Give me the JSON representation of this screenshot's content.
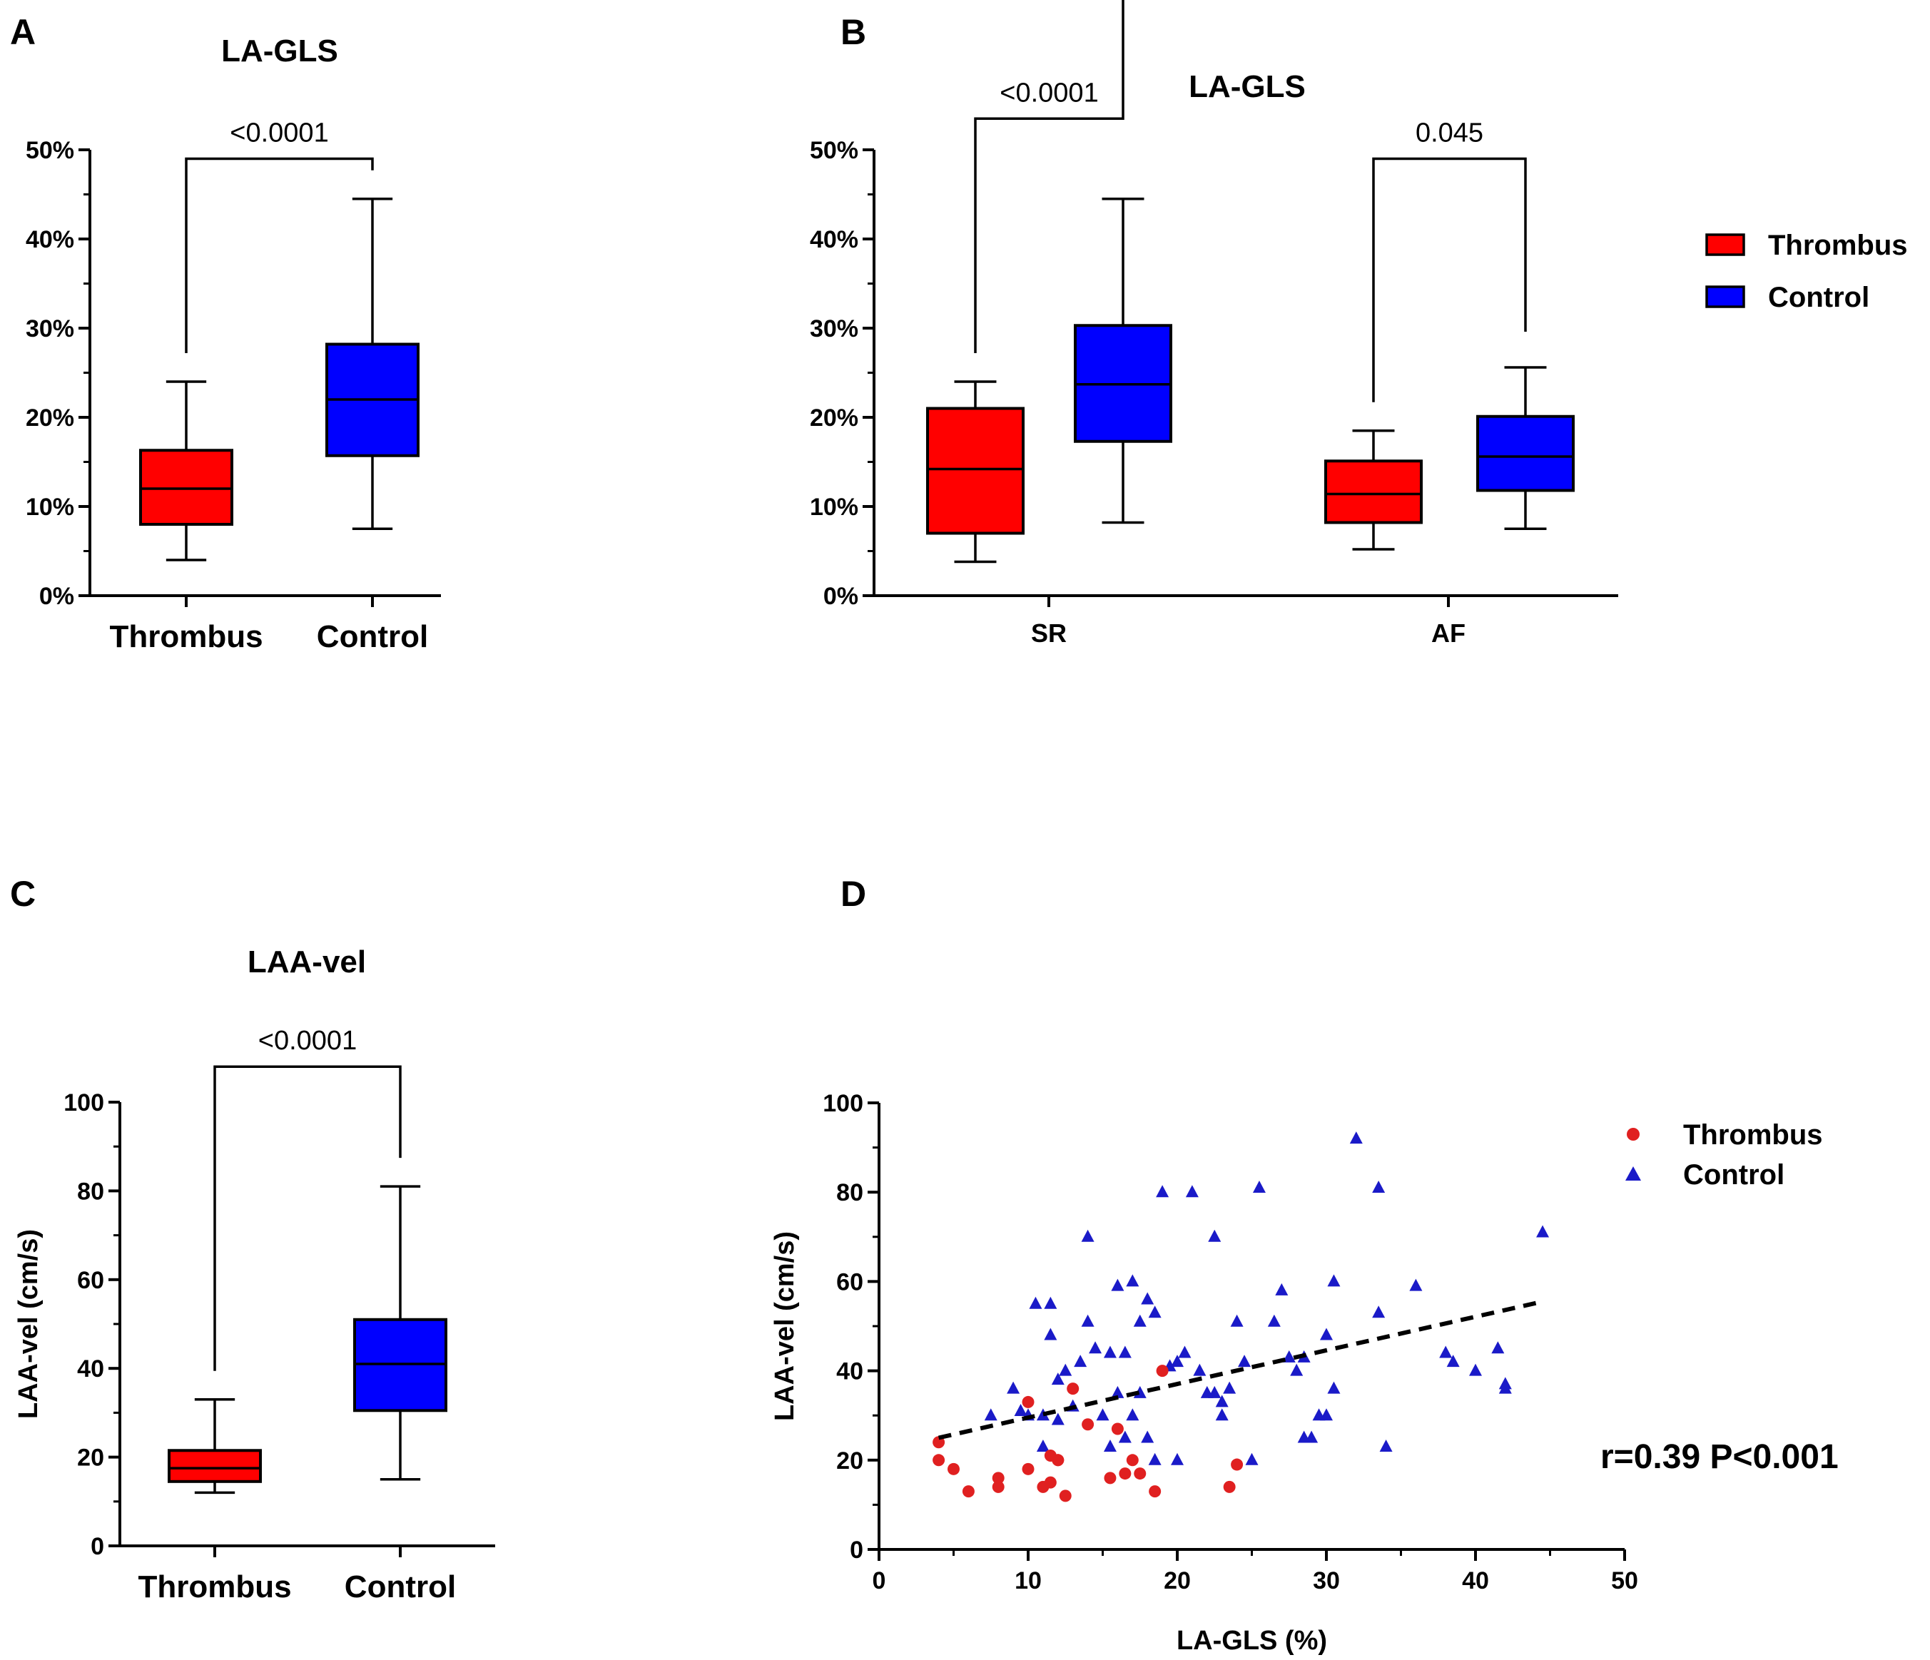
{
  "colors": {
    "thrombus": "#ff0000",
    "control": "#0000ff",
    "scatter_thrombus": "#e02020",
    "scatter_control": "#1a1ac8",
    "line": "#000000"
  },
  "chart_data": [
    {
      "panel": "A",
      "type": "box",
      "title": "LA-GLS",
      "categories": [
        "Thrombus",
        "Control"
      ],
      "ylim": [
        0,
        50
      ],
      "yticks": [
        0,
        10,
        20,
        30,
        40,
        50
      ],
      "ytick_labels": [
        "0%",
        "10%",
        "20%",
        "30%",
        "40%",
        "50%"
      ],
      "series": [
        {
          "name": "Thrombus",
          "min": 4,
          "q1": 8,
          "median": 12,
          "q3": 16.3,
          "max": 24
        },
        {
          "name": "Control",
          "min": 7.5,
          "q1": 15.7,
          "median": 22,
          "q3": 28.2,
          "max": 44.5
        }
      ],
      "comparisons": [
        {
          "from": 0,
          "to": 1,
          "label": "<0.0001",
          "y": 49
        }
      ]
    },
    {
      "panel": "B",
      "type": "box",
      "title": "LA-GLS",
      "groups": [
        "SR",
        "AF"
      ],
      "ylim": [
        0,
        50
      ],
      "yticks": [
        0,
        10,
        20,
        30,
        40,
        50
      ],
      "ytick_labels": [
        "0%",
        "10%",
        "20%",
        "30%",
        "40%",
        "50%"
      ],
      "legend": [
        "Thrombus",
        "Control"
      ],
      "series": [
        {
          "group": "SR",
          "name": "Thrombus",
          "min": 3.8,
          "q1": 7,
          "median": 14.2,
          "q3": 21,
          "max": 24
        },
        {
          "group": "SR",
          "name": "Control",
          "min": 8.2,
          "q1": 17.3,
          "median": 23.7,
          "q3": 30.3,
          "max": 44.5
        },
        {
          "group": "AF",
          "name": "Thrombus",
          "min": 5.2,
          "q1": 8.2,
          "median": 11.4,
          "q3": 15.1,
          "max": 18.5
        },
        {
          "group": "AF",
          "name": "Control",
          "min": 7.5,
          "q1": 11.8,
          "median": 15.6,
          "q3": 20.1,
          "max": 25.6
        }
      ],
      "comparisons": [
        {
          "from": 0,
          "to": 1,
          "label": "<0.0001",
          "y": 53.5
        },
        {
          "from": 2,
          "to": 3,
          "label": "0.045",
          "y": 49
        }
      ]
    },
    {
      "panel": "C",
      "type": "box",
      "title": "LAA-vel",
      "categories": [
        "Thrombus",
        "Control"
      ],
      "ylim": [
        0,
        100
      ],
      "yticks": [
        0,
        20,
        40,
        60,
        80,
        100
      ],
      "ytick_labels": [
        "0",
        "20",
        "40",
        "60",
        "80",
        "100"
      ],
      "ylabel": "LAA-vel (cm/s)",
      "series": [
        {
          "name": "Thrombus",
          "min": 12,
          "q1": 14.5,
          "median": 17.5,
          "q3": 21.5,
          "max": 33
        },
        {
          "name": "Control",
          "min": 15,
          "q1": 30.5,
          "median": 41,
          "q3": 51,
          "max": 81
        }
      ],
      "comparisons": [
        {
          "from": 0,
          "to": 1,
          "label": "<0.0001",
          "y": 108
        }
      ]
    },
    {
      "panel": "D",
      "type": "scatter",
      "xlabel": "LA-GLS (%)",
      "ylabel": "LAA-vel (cm/s)",
      "xlim": [
        0,
        50
      ],
      "ylim": [
        0,
        100
      ],
      "xticks": [
        0,
        10,
        20,
        30,
        40,
        50
      ],
      "xtick_labels": [
        "0",
        "10",
        "20",
        "30",
        "40",
        "50"
      ],
      "yticks": [
        0,
        20,
        40,
        60,
        80,
        100
      ],
      "ytick_labels": [
        "0",
        "20",
        "40",
        "60",
        "80",
        "100"
      ],
      "legend": [
        "Thrombus",
        "Control"
      ],
      "annotation": "r=0.39 P<0.001",
      "trendline": {
        "x": [
          4,
          44.5
        ],
        "y": [
          25,
          55.5
        ]
      },
      "series": [
        {
          "name": "Thrombus",
          "marker": "circle",
          "x": [
            4,
            4,
            5,
            6,
            8,
            8,
            10,
            10,
            11,
            11.5,
            12,
            11.5,
            12,
            12.5,
            13,
            14,
            15.5,
            16,
            16.5,
            17,
            17.5,
            18.5,
            19,
            23.5,
            24
          ],
          "y": [
            24,
            20,
            18,
            13,
            16,
            14,
            33,
            18,
            14,
            21,
            20,
            15,
            20,
            12,
            36,
            28,
            16,
            27,
            17,
            20,
            17,
            13,
            40,
            14,
            19
          ]
        },
        {
          "name": "Control",
          "marker": "triangle",
          "x": [
            7.5,
            9,
            9.5,
            10,
            10.5,
            11,
            11,
            11.5,
            11.5,
            12,
            12,
            12.5,
            13,
            13.5,
            14,
            14,
            14.5,
            15,
            15.5,
            15.5,
            16,
            16,
            16.5,
            16.5,
            17,
            17,
            17.5,
            17.5,
            18,
            18,
            18.5,
            18.5,
            19,
            19.5,
            20,
            20,
            20.5,
            21,
            21.5,
            22,
            22.5,
            22.5,
            23,
            23,
            23.5,
            24,
            24.5,
            25,
            25.5,
            26.5,
            27,
            27.5,
            28,
            28.5,
            28.5,
            29,
            29.5,
            30,
            30,
            30.5,
            30.5,
            32,
            33.5,
            33.5,
            34,
            36,
            38,
            38.5,
            40,
            41.5,
            42,
            42,
            44.5
          ],
          "y": [
            30,
            36,
            31,
            30,
            55,
            30,
            23,
            55,
            48,
            38,
            29,
            40,
            32,
            42,
            70,
            51,
            45,
            30,
            23,
            44,
            59,
            35,
            44,
            25,
            60,
            30,
            51,
            35,
            56,
            25,
            20,
            53,
            80,
            41,
            42,
            20,
            44,
            80,
            40,
            35,
            35,
            70,
            33,
            30,
            36,
            51,
            42,
            20,
            81,
            51,
            58,
            43,
            40,
            43,
            25,
            25,
            30,
            48,
            30,
            60,
            36,
            92,
            53,
            81,
            23,
            59,
            44,
            42,
            40,
            45,
            36,
            37,
            71
          ]
        }
      ]
    }
  ]
}
